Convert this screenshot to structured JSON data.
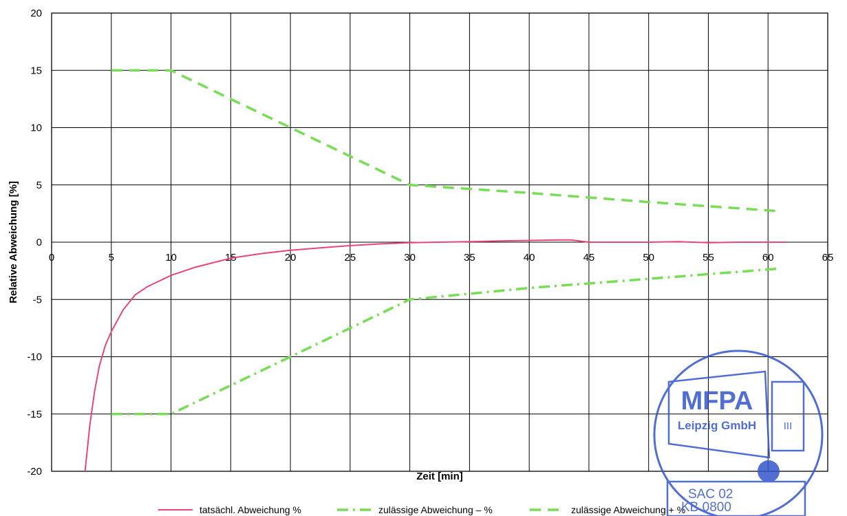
{
  "chart_data": {
    "type": "line",
    "xlabel": "Zeit [min]",
    "ylabel": "Relative Abweichung [%]",
    "xlim": [
      0,
      65
    ],
    "ylim": [
      -20,
      20
    ],
    "xticks": [
      0,
      5,
      10,
      15,
      20,
      25,
      30,
      35,
      40,
      45,
      50,
      55,
      60,
      65
    ],
    "yticks": [
      20,
      15,
      10,
      5,
      0,
      -5,
      -10,
      -15,
      -20
    ],
    "grid": true,
    "legend_position": "bottom",
    "series": [
      {
        "name": "tatsächl. Abweichung %",
        "color": "#e8457a",
        "style": "solid",
        "x": [
          2.8,
          3.2,
          3.6,
          4.0,
          4.5,
          5.0,
          6.0,
          7.0,
          8.0,
          10.0,
          12.0,
          15.0,
          17.5,
          20.0,
          22.5,
          25.0,
          27.5,
          30.0,
          32.5,
          35.0,
          37.5,
          40.0,
          42.5,
          43.5,
          45.0,
          47.5,
          50.0,
          52.5,
          55.0,
          57.5,
          60.0,
          61.5
        ],
        "values": [
          -20.0,
          -16.0,
          -13.0,
          -10.8,
          -9.0,
          -7.8,
          -5.9,
          -4.6,
          -3.9,
          -2.9,
          -2.2,
          -1.4,
          -1.0,
          -0.7,
          -0.5,
          -0.3,
          -0.15,
          -0.05,
          0.0,
          0.05,
          0.1,
          0.15,
          0.2,
          0.2,
          0.0,
          0.0,
          0.0,
          0.05,
          -0.05,
          0.0,
          0.0,
          0.0
        ]
      },
      {
        "name": "zulässige Abweichung – %",
        "color": "#77dd55",
        "style": "dashdot",
        "x": [
          5,
          10,
          20,
          30,
          40,
          50,
          61
        ],
        "values": [
          -15,
          -15,
          -10,
          -5,
          -4,
          -3.2,
          -2.3
        ]
      },
      {
        "name": "zulässige Abweichung + %",
        "color": "#77dd55",
        "style": "dashed",
        "x": [
          5,
          10,
          20,
          30,
          40,
          50,
          61
        ],
        "values": [
          15,
          15,
          10,
          5,
          4.3,
          3.5,
          2.7
        ]
      }
    ]
  },
  "stamp": {
    "name": "MFPA",
    "subtitle": "Leipzig GmbH",
    "roman": "III",
    "code_line1": "SAC 02",
    "code_line2": "KB  0800",
    "color": "#3355cc"
  }
}
